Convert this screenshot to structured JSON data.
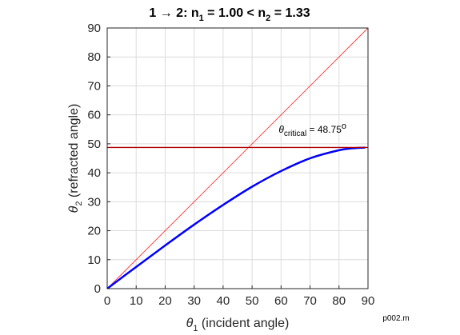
{
  "chart_data": {
    "type": "line",
    "title": {
      "main": "1 → 2: n",
      "sub1": "1",
      "mid": " = 1.00  <  n",
      "sub2": "2",
      "end": " = 1.33"
    },
    "xlabel": {
      "symbol": "θ",
      "sub": "1",
      "text": " (incident angle)"
    },
    "ylabel": {
      "symbol": "θ",
      "sub": "2",
      "text": " (refracted angle)"
    },
    "xlim": [
      0,
      90
    ],
    "ylim": [
      0,
      90
    ],
    "xticks": [
      0,
      10,
      20,
      30,
      40,
      50,
      60,
      70,
      80,
      90
    ],
    "yticks": [
      0,
      10,
      20,
      30,
      40,
      50,
      60,
      70,
      80,
      90
    ],
    "grid": true,
    "series": [
      {
        "style": "thin-red-diagonal",
        "color": "#ff3b3b",
        "x": [
          0,
          90
        ],
        "y": [
          0,
          90
        ]
      },
      {
        "style": "thick-blue-curve",
        "color": "#0000ff",
        "x": [
          0,
          10,
          20,
          30,
          40,
          50,
          60,
          70,
          80,
          85,
          89
        ],
        "y": [
          0,
          7.5,
          14.9,
          22.1,
          28.9,
          35.2,
          40.6,
          45.0,
          47.8,
          48.5,
          48.7
        ]
      },
      {
        "style": "dark-red-horizontal",
        "color": "#b00000",
        "x": [
          0,
          90
        ],
        "y": [
          48.75,
          48.75
        ]
      }
    ],
    "annotation": {
      "symbol": "θ",
      "sub": "critical",
      "text": " = 48.75",
      "degree": "o",
      "x": 60,
      "y": 55
    },
    "footer": "p002.m"
  }
}
